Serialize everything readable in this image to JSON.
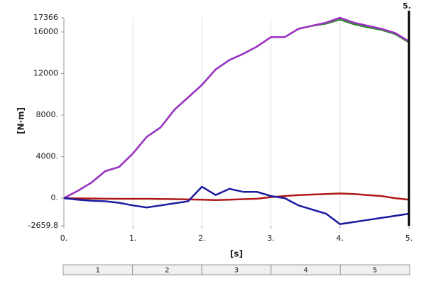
{
  "chart_data": {
    "type": "line",
    "y_label": "[N·m]",
    "x_label": "[s]",
    "x": [
      0,
      0.2,
      0.4,
      0.6,
      0.8,
      1.0,
      1.2,
      1.4,
      1.6,
      1.8,
      2.0,
      2.2,
      2.4,
      2.6,
      2.8,
      3.0,
      3.2,
      3.4,
      3.6,
      3.8,
      4.0,
      4.2,
      4.4,
      4.6,
      4.8,
      5.0
    ],
    "series": [
      {
        "color": "#2e8b2e",
        "values": [
          0,
          700,
          1500,
          2600,
          3000,
          4300,
          5900,
          6800,
          8500,
          9700,
          10900,
          12400,
          13300,
          13900,
          14600,
          15500,
          15500,
          16300,
          16600,
          16800,
          17200,
          16750,
          16450,
          16200,
          15800,
          15000
        ]
      },
      {
        "color": "#a030c8",
        "values": [
          0,
          700,
          1500,
          2600,
          3000,
          4300,
          5900,
          6800,
          8500,
          9700,
          10900,
          12400,
          13300,
          13900,
          14600,
          15500,
          15500,
          16300,
          16600,
          16900,
          17366,
          16900,
          16600,
          16300,
          15900,
          15100
        ]
      },
      {
        "color": "#b01818",
        "values": [
          0,
          -20,
          -40,
          -50,
          -60,
          -60,
          -60,
          -80,
          -100,
          -120,
          -150,
          -180,
          -150,
          -100,
          -50,
          100,
          200,
          300,
          350,
          400,
          450,
          400,
          300,
          200,
          0,
          -150
        ]
      },
      {
        "color": "#1a1aa0",
        "values": [
          0,
          -150,
          -250,
          -300,
          -450,
          -700,
          -900,
          -700,
          -500,
          -300,
          1100,
          300,
          900,
          600,
          600,
          200,
          0,
          -700,
          -1100,
          -1500,
          -2500,
          -2300,
          -2100,
          -1900,
          -1700,
          -1500
        ]
      }
    ],
    "xlim": [
      0,
      5
    ],
    "xticks": [
      {
        "value": 0,
        "label": "0."
      },
      {
        "value": 1,
        "label": "1."
      },
      {
        "value": 2,
        "label": "2."
      },
      {
        "value": 3,
        "label": "3."
      },
      {
        "value": 4,
        "label": "4."
      },
      {
        "value": 5,
        "label": "5."
      }
    ],
    "ylim": [
      -2659.8,
      17366
    ],
    "yticks": [
      -2659.8,
      {
        "value": 0,
        "label": "0."
      },
      {
        "value": 4000,
        "label": "4000."
      },
      {
        "value": 8000,
        "label": "8000."
      },
      12000,
      16000,
      17366
    ],
    "grid": true,
    "cursor": {
      "value": 5,
      "label": "5."
    },
    "steps": [
      "1",
      "2",
      "3",
      "4",
      "5"
    ]
  }
}
